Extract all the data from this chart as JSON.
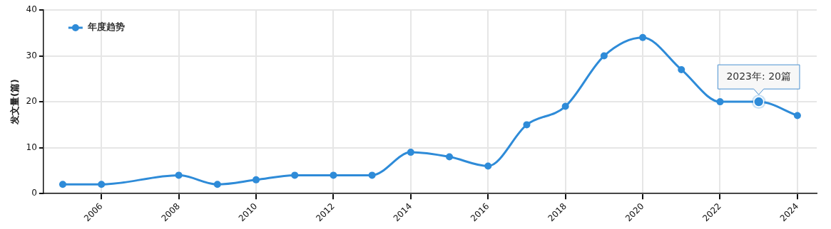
{
  "chart_data": {
    "type": "line",
    "ylabel": "发文量(篇)",
    "x": [
      2005,
      2006,
      2008,
      2009,
      2010,
      2011,
      2012,
      2013,
      2014,
      2015,
      2016,
      2017,
      2018,
      2019,
      2020,
      2021,
      2022,
      2023,
      2024
    ],
    "series": [
      {
        "name": "年度趋势",
        "color": "#2e8bd8",
        "values": [
          2,
          2,
          4,
          2,
          3,
          4,
          4,
          4,
          9,
          8,
          6,
          15,
          19,
          30,
          34,
          27,
          20,
          20,
          17
        ]
      }
    ],
    "xlim": [
      2004.5,
      2024.5
    ],
    "xticks": [
      2006,
      2008,
      2010,
      2012,
      2014,
      2016,
      2018,
      2020,
      2022,
      2024
    ],
    "ylim": [
      0,
      40
    ],
    "yticks": [
      0,
      10,
      20,
      30,
      40
    ],
    "annotations": [
      {
        "text": "2023年: 20篇",
        "x": 2023,
        "y": 20
      }
    ],
    "grid": true,
    "legend": "top left",
    "marker": "circle",
    "line_style": "solid"
  }
}
